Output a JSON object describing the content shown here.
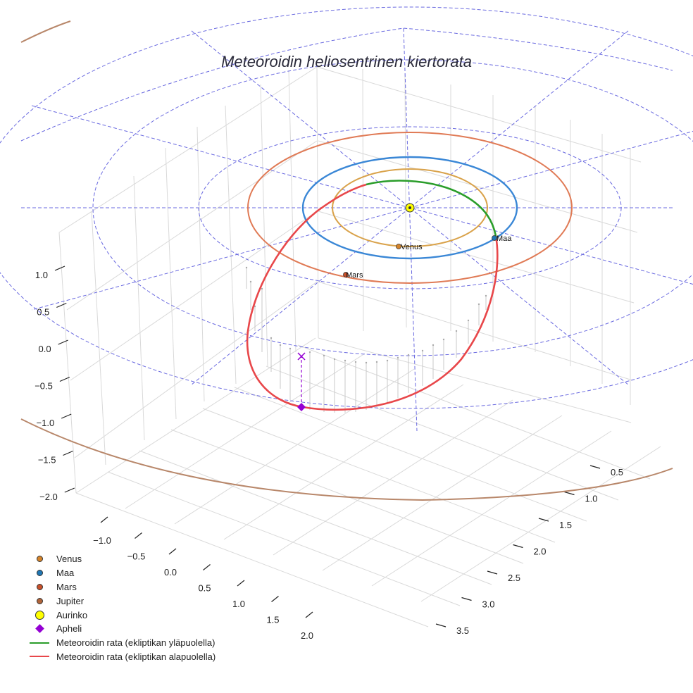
{
  "chart_data": {
    "type": "line3d",
    "title": "Meteoroidin heliosentrinen kiertorata",
    "axes": {
      "z_ticks": [
        "1.0",
        "0.5",
        "0.0",
        "−0.5",
        "−1.0",
        "−1.5",
        "−2.0"
      ],
      "x_ticks": [
        "−1.0",
        "−0.5",
        "0.0",
        "0.5",
        "1.0",
        "1.5",
        "2.0"
      ],
      "y_ticks": [
        "0.5",
        "1.0",
        "1.5",
        "2.0",
        "2.5",
        "3.0",
        "3.5"
      ],
      "grid": true
    },
    "planets": [
      {
        "name": "Venus",
        "orbit_radius_au": 0.72,
        "color": "#d19a2a",
        "label": "Venus"
      },
      {
        "name": "Maa",
        "orbit_radius_au": 1.0,
        "color": "#1f77b4",
        "label": "Maa"
      },
      {
        "name": "Mars",
        "orbit_radius_au": 1.52,
        "color": "#c8502a",
        "label": "Mars"
      },
      {
        "name": "Jupiter",
        "orbit_radius_au": 5.2,
        "color": "#a0522d",
        "label": ""
      }
    ],
    "sun": {
      "name": "Aurinko",
      "color": "#ffff00"
    },
    "aphelion": {
      "name": "Apheli",
      "color": "#9400d3",
      "x": -0.25,
      "y": 1.1,
      "z": -0.8
    },
    "meteoroid_orbit": {
      "above": {
        "name": "Meteoroidin rata (ekliptikan yläpuolella)",
        "color": "#2a9d2a"
      },
      "below": {
        "name": "Meteoroidin rata (ekliptikan alapuolella)",
        "color": "#e8474a"
      }
    },
    "reference_grid": {
      "rings_au": [
        1.5,
        2.5,
        3.5
      ],
      "color": "#6a6ae0",
      "style": "dashed"
    }
  },
  "legend": [
    {
      "label": "Venus",
      "kind": "dot",
      "color": "#d4832a"
    },
    {
      "label": "Maa",
      "kind": "dot",
      "color": "#1f77b4"
    },
    {
      "label": "Mars",
      "kind": "dot",
      "color": "#c8502a"
    },
    {
      "label": "Jupiter",
      "kind": "dot",
      "color": "#b0643a"
    },
    {
      "label": "Aurinko",
      "kind": "bigdot",
      "color": "#ffff00"
    },
    {
      "label": "Apheli",
      "kind": "diamond",
      "color": "#9400d3"
    },
    {
      "label": "Meteoroidin rata (ekliptikan yläpuolella)",
      "kind": "line",
      "color": "#2a9d2a"
    },
    {
      "label": "Meteoroidin rata (ekliptikan alapuolella)",
      "kind": "line",
      "color": "#e8474a"
    }
  ]
}
